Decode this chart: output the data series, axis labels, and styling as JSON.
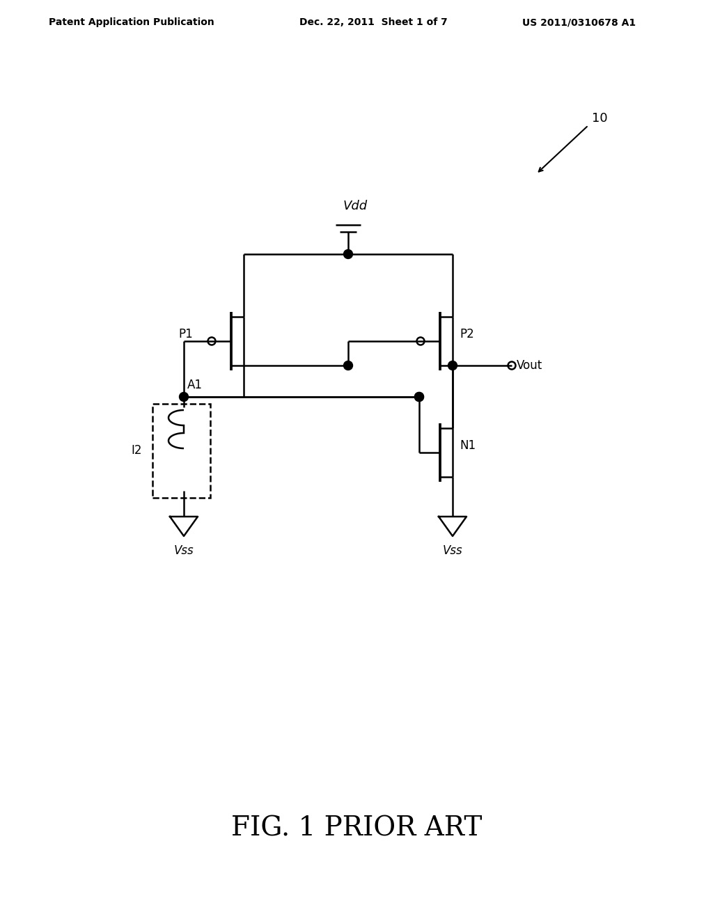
{
  "bg_color": "#ffffff",
  "line_color": "#000000",
  "line_width": 1.8,
  "header_left": "Patent Application Publication",
  "header_mid": "Dec. 22, 2011  Sheet 1 of 7",
  "header_right": "US 2011/0310678 A1",
  "footer_text": "FIG. 1 PRIOR ART",
  "label_10": "10",
  "label_I2": "I2",
  "label_P1": "P1",
  "label_P2": "P2",
  "label_N1": "N1",
  "label_A1": "A1",
  "label_Vdd": "Vdd",
  "label_Vout": "Vout",
  "label_Vss1": "Vss",
  "label_Vss2": "Vss"
}
